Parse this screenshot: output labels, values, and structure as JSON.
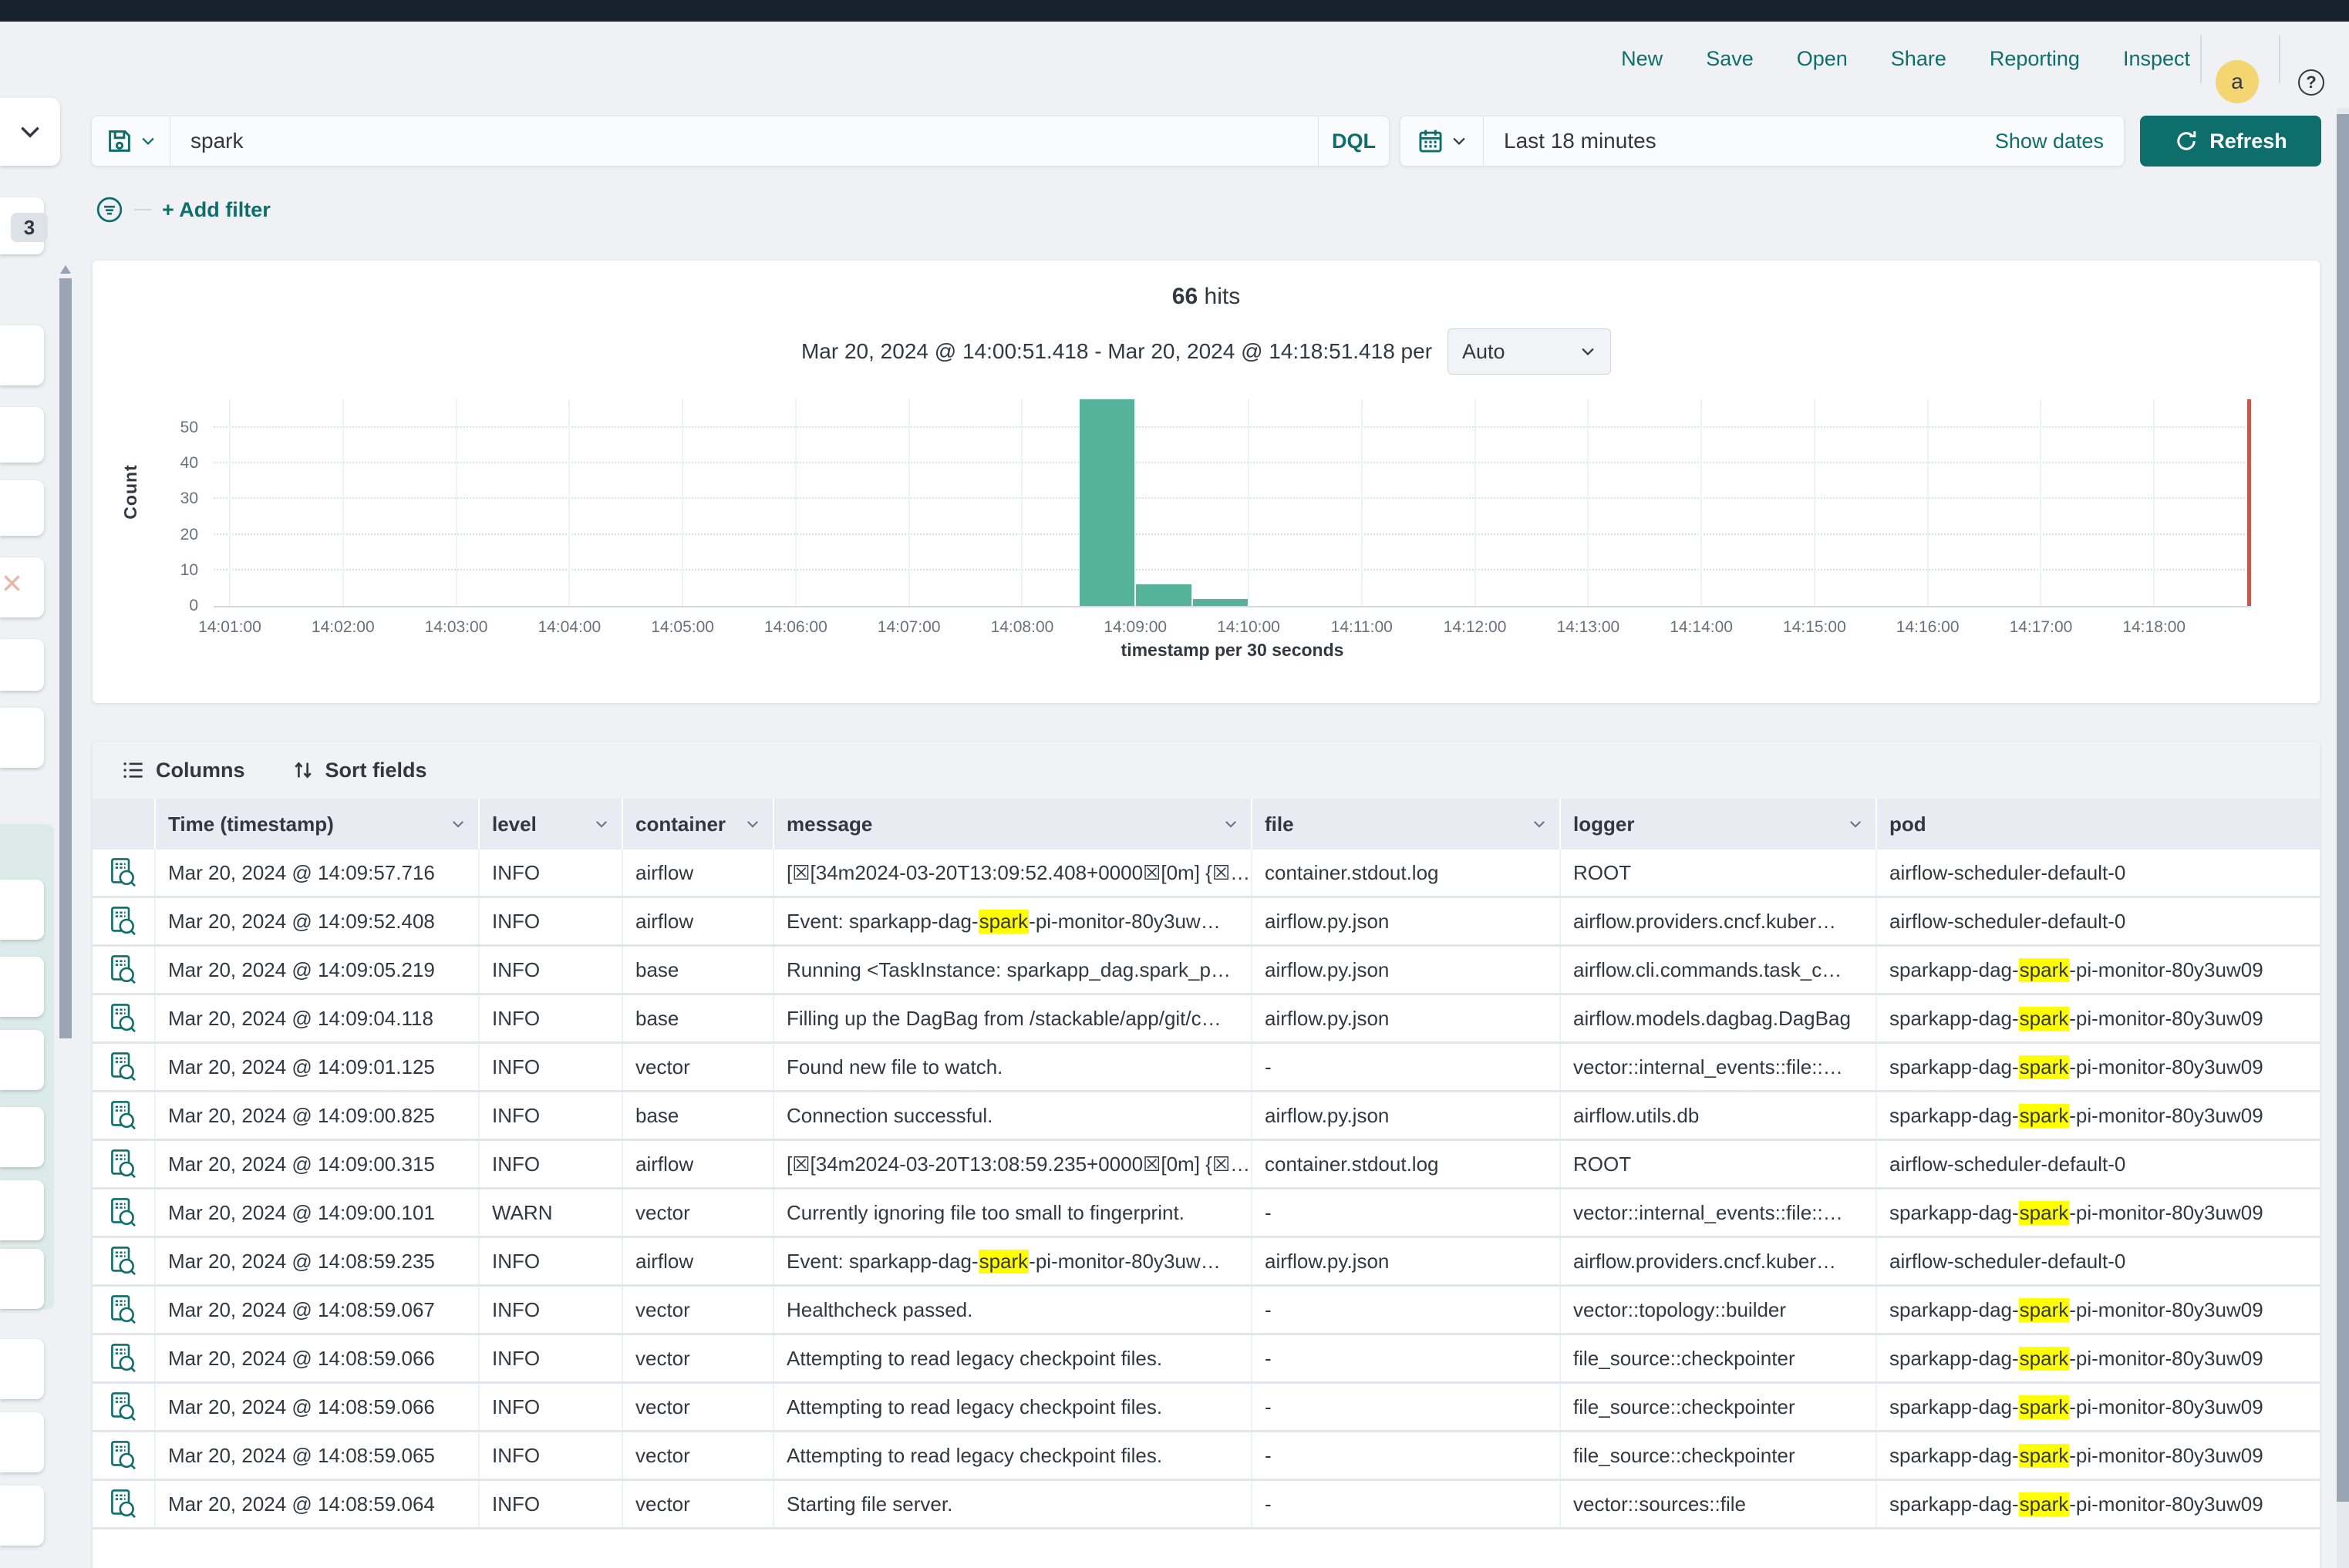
{
  "topnav": {
    "links": [
      "New",
      "Save",
      "Open",
      "Share",
      "Reporting",
      "Inspect"
    ],
    "avatar_initial": "a",
    "help_label": "?"
  },
  "query_bar": {
    "query": "spark",
    "language_button": "DQL",
    "time_range": "Last 18 minutes",
    "show_dates_link": "Show dates",
    "refresh_button": "Refresh"
  },
  "filter_row": {
    "add_filter_link": "+ Add filter"
  },
  "fields_panel": {
    "selected_badge": "3"
  },
  "results_header": {
    "hits_count": "66",
    "hits_label": "hits",
    "time_span": "Mar 20, 2024 @ 14:00:51.418 - Mar 20, 2024 @ 14:18:51.418 per",
    "interval_select": "Auto"
  },
  "chart_data": {
    "type": "bar",
    "title": "66 hits",
    "ylabel": "Count",
    "xlabel": "timestamp per 30 seconds",
    "range_start": "14:00:51.418",
    "range_end": "14:18:51.418",
    "interval_sec": 30,
    "y_ticks": [
      0,
      10,
      20,
      30,
      40,
      50
    ],
    "y_max": 58,
    "x_ticks": [
      "14:01:00",
      "14:02:00",
      "14:03:00",
      "14:04:00",
      "14:05:00",
      "14:06:00",
      "14:07:00",
      "14:08:00",
      "14:09:00",
      "14:10:00",
      "14:11:00",
      "14:12:00",
      "14:13:00",
      "14:14:00",
      "14:15:00",
      "14:16:00",
      "14:17:00",
      "14:18:00"
    ],
    "buckets": [
      {
        "start": "14:08:30",
        "count": 58
      },
      {
        "start": "14:09:00",
        "count": 6
      },
      {
        "start": "14:09:30",
        "count": 2
      }
    ],
    "bar_color": "#54b399",
    "now_marker": "14:18:51.418",
    "now_marker_color": "#c5584a",
    "highlight_color": "#ffff00",
    "accent_color": "#0d6e6c"
  },
  "table": {
    "toolbar": {
      "columns_button": "Columns",
      "sort_button": "Sort fields"
    },
    "headers": [
      {
        "label": "Time (timestamp)",
        "sortable": true
      },
      {
        "label": "level",
        "sortable": true
      },
      {
        "label": "container",
        "sortable": true
      },
      {
        "label": "message",
        "sortable": true
      },
      {
        "label": "file",
        "sortable": true
      },
      {
        "label": "logger",
        "sortable": true
      },
      {
        "label": "pod",
        "sortable": false
      }
    ],
    "rows": [
      {
        "time": "Mar 20, 2024 @ 14:09:57.716",
        "level": "INFO",
        "container": "airflow",
        "message": [
          "[☒[34m2024-03-20T13:09:52.408+0000☒[0m] {☒…"
        ],
        "file": "container.stdout.log",
        "logger": "ROOT",
        "pod": [
          "airflow-scheduler-default-0"
        ]
      },
      {
        "time": "Mar 20, 2024 @ 14:09:52.408",
        "level": "INFO",
        "container": "airflow",
        "message": [
          "Event: sparkapp-dag-",
          {
            "hl": "spark"
          },
          "-pi-monitor-80y3uw…"
        ],
        "file": "airflow.py.json",
        "logger": "airflow.providers.cncf.kuber…",
        "pod": [
          "airflow-scheduler-default-0"
        ]
      },
      {
        "time": "Mar 20, 2024 @ 14:09:05.219",
        "level": "INFO",
        "container": "base",
        "message": [
          "Running <TaskInstance: sparkapp_dag.spark_p…"
        ],
        "file": "airflow.py.json",
        "logger": "airflow.cli.commands.task_c…",
        "pod": [
          "sparkapp-dag-",
          {
            "hl": "spark"
          },
          "-pi-monitor-80y3uw09"
        ]
      },
      {
        "time": "Mar 20, 2024 @ 14:09:04.118",
        "level": "INFO",
        "container": "base",
        "message": [
          "Filling up the DagBag from /stackable/app/git/c…"
        ],
        "file": "airflow.py.json",
        "logger": "airflow.models.dagbag.DagBag",
        "pod": [
          "sparkapp-dag-",
          {
            "hl": "spark"
          },
          "-pi-monitor-80y3uw09"
        ]
      },
      {
        "time": "Mar 20, 2024 @ 14:09:01.125",
        "level": "INFO",
        "container": "vector",
        "message": [
          "Found new file to watch."
        ],
        "file": "-",
        "logger": "vector::internal_events::file::…",
        "pod": [
          "sparkapp-dag-",
          {
            "hl": "spark"
          },
          "-pi-monitor-80y3uw09"
        ]
      },
      {
        "time": "Mar 20, 2024 @ 14:09:00.825",
        "level": "INFO",
        "container": "base",
        "message": [
          "Connection successful."
        ],
        "file": "airflow.py.json",
        "logger": "airflow.utils.db",
        "pod": [
          "sparkapp-dag-",
          {
            "hl": "spark"
          },
          "-pi-monitor-80y3uw09"
        ]
      },
      {
        "time": "Mar 20, 2024 @ 14:09:00.315",
        "level": "INFO",
        "container": "airflow",
        "message": [
          "[☒[34m2024-03-20T13:08:59.235+0000☒[0m] {☒…"
        ],
        "file": "container.stdout.log",
        "logger": "ROOT",
        "pod": [
          "airflow-scheduler-default-0"
        ]
      },
      {
        "time": "Mar 20, 2024 @ 14:09:00.101",
        "level": "WARN",
        "container": "vector",
        "message": [
          "Currently ignoring file too small to fingerprint."
        ],
        "file": "-",
        "logger": "vector::internal_events::file::…",
        "pod": [
          "sparkapp-dag-",
          {
            "hl": "spark"
          },
          "-pi-monitor-80y3uw09"
        ]
      },
      {
        "time": "Mar 20, 2024 @ 14:08:59.235",
        "level": "INFO",
        "container": "airflow",
        "message": [
          "Event: sparkapp-dag-",
          {
            "hl": "spark"
          },
          "-pi-monitor-80y3uw…"
        ],
        "file": "airflow.py.json",
        "logger": "airflow.providers.cncf.kuber…",
        "pod": [
          "airflow-scheduler-default-0"
        ]
      },
      {
        "time": "Mar 20, 2024 @ 14:08:59.067",
        "level": "INFO",
        "container": "vector",
        "message": [
          "Healthcheck passed."
        ],
        "file": "-",
        "logger": "vector::topology::builder",
        "pod": [
          "sparkapp-dag-",
          {
            "hl": "spark"
          },
          "-pi-monitor-80y3uw09"
        ]
      },
      {
        "time": "Mar 20, 2024 @ 14:08:59.066",
        "level": "INFO",
        "container": "vector",
        "message": [
          "Attempting to read legacy checkpoint files."
        ],
        "file": "-",
        "logger": "file_source::checkpointer",
        "pod": [
          "sparkapp-dag-",
          {
            "hl": "spark"
          },
          "-pi-monitor-80y3uw09"
        ]
      },
      {
        "time": "Mar 20, 2024 @ 14:08:59.066",
        "level": "INFO",
        "container": "vector",
        "message": [
          "Attempting to read legacy checkpoint files."
        ],
        "file": "-",
        "logger": "file_source::checkpointer",
        "pod": [
          "sparkapp-dag-",
          {
            "hl": "spark"
          },
          "-pi-monitor-80y3uw09"
        ]
      },
      {
        "time": "Mar 20, 2024 @ 14:08:59.065",
        "level": "INFO",
        "container": "vector",
        "message": [
          "Attempting to read legacy checkpoint files."
        ],
        "file": "-",
        "logger": "file_source::checkpointer",
        "pod": [
          "sparkapp-dag-",
          {
            "hl": "spark"
          },
          "-pi-monitor-80y3uw09"
        ]
      },
      {
        "time": "Mar 20, 2024 @ 14:08:59.064",
        "level": "INFO",
        "container": "vector",
        "message": [
          "Starting file server."
        ],
        "file": "-",
        "logger": "vector::sources::file",
        "pod": [
          "sparkapp-dag-",
          {
            "hl": "spark"
          },
          "-pi-monitor-80y3uw09"
        ]
      }
    ]
  }
}
